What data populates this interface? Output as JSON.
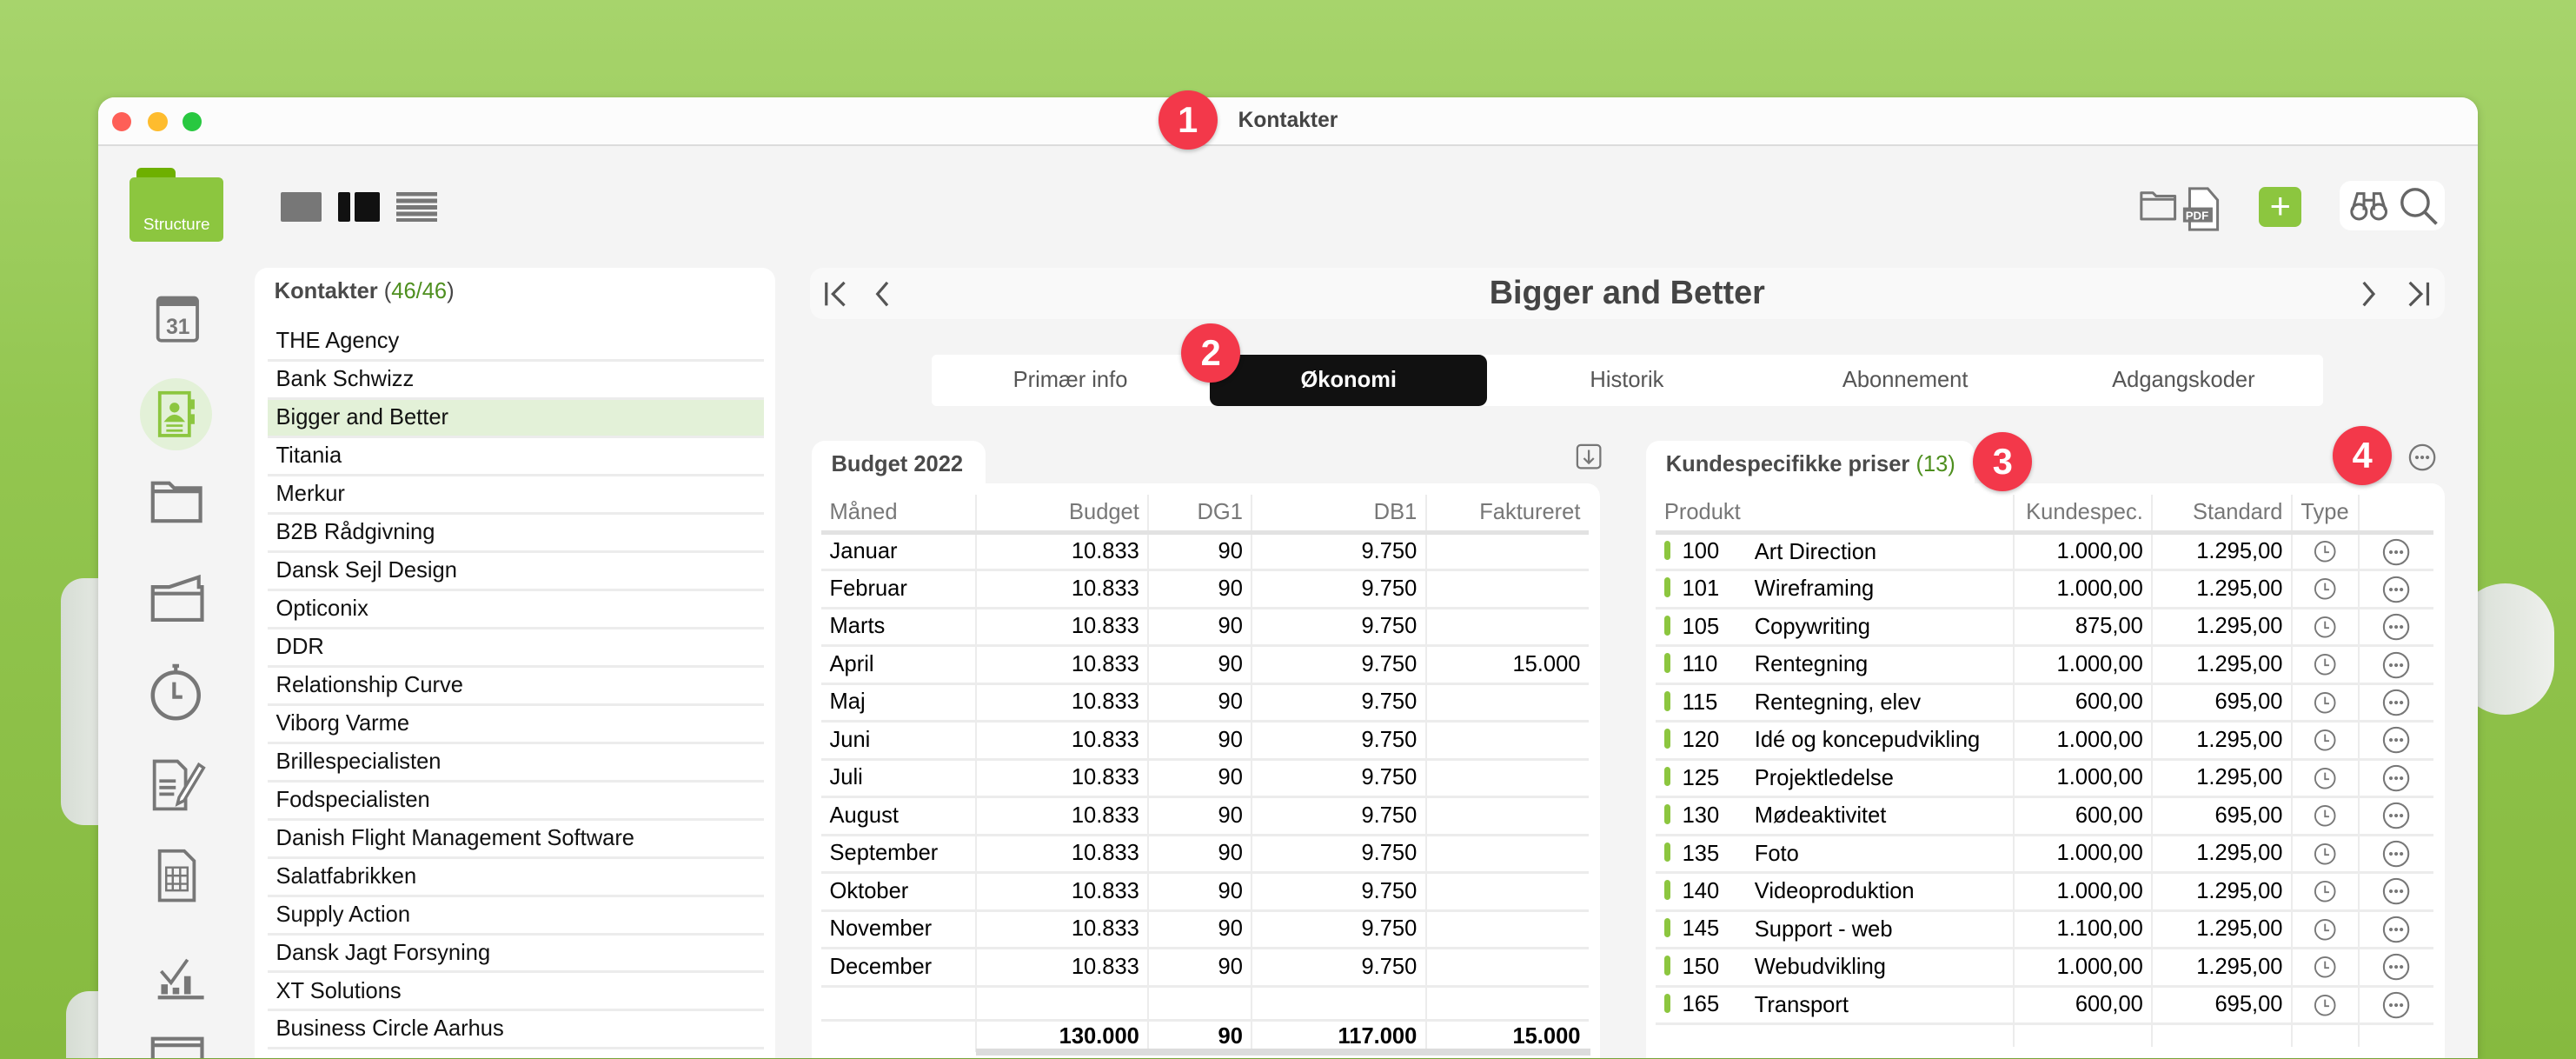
{
  "window": {
    "title": "Kontakter"
  },
  "annotations": [
    "1",
    "2",
    "3",
    "4"
  ],
  "toolbar": {
    "logo_label": "Structure",
    "view_modes": [
      "single-view-icon",
      "split-view-icon",
      "list-view-icon"
    ],
    "right_icons": [
      "folder-icon",
      "pdf-icon",
      "add-icon",
      "binoculars-icon",
      "search-icon"
    ],
    "pdf_label": "PDF"
  },
  "sidebar": {
    "icons": [
      "calendar-icon",
      "contact-card-icon",
      "folder-icon",
      "open-folder-icon",
      "stopwatch-icon",
      "edit-document-icon",
      "spreadsheet-icon",
      "chart-icon",
      "invoice-icon"
    ],
    "active": 1,
    "calendar_day": "31"
  },
  "contacts": {
    "title": "Kontakter",
    "count_open": "(",
    "count": "46/46",
    "count_close": ")",
    "selected": 2,
    "items": [
      "THE Agency",
      "Bank Schwizz",
      "Bigger and Better",
      "Titania",
      "Merkur",
      "B2B Rådgivning",
      "Dansk Sejl Design",
      "Opticonix",
      "DDR",
      "Relationship Curve",
      "Viborg Varme",
      "Brillespecialisten",
      "Fodspecialisten",
      "Danish Flight Management Software",
      "Salatfabrikken",
      "Supply Action",
      "Dansk Jagt Forsyning",
      "XT Solutions",
      "Business Circle Aarhus"
    ]
  },
  "record": {
    "title": "Bigger and Better"
  },
  "tabs": {
    "items": [
      "Primær info",
      "Økonomi",
      "Historik",
      "Abonnement",
      "Adgangskoder"
    ],
    "active": 1
  },
  "budget": {
    "title": "Budget 2022",
    "columns": [
      "Måned",
      "Budget",
      "DG1",
      "DB1",
      "Faktureret"
    ],
    "rows": [
      [
        "Januar",
        "10.833",
        "90",
        "9.750",
        ""
      ],
      [
        "Februar",
        "10.833",
        "90",
        "9.750",
        ""
      ],
      [
        "Marts",
        "10.833",
        "90",
        "9.750",
        ""
      ],
      [
        "April",
        "10.833",
        "90",
        "9.750",
        "15.000"
      ],
      [
        "Maj",
        "10.833",
        "90",
        "9.750",
        ""
      ],
      [
        "Juni",
        "10.833",
        "90",
        "9.750",
        ""
      ],
      [
        "Juli",
        "10.833",
        "90",
        "9.750",
        ""
      ],
      [
        "August",
        "10.833",
        "90",
        "9.750",
        ""
      ],
      [
        "September",
        "10.833",
        "90",
        "9.750",
        ""
      ],
      [
        "Oktober",
        "10.833",
        "90",
        "9.750",
        ""
      ],
      [
        "November",
        "10.833",
        "90",
        "9.750",
        ""
      ],
      [
        "December",
        "10.833",
        "90",
        "9.750",
        ""
      ]
    ],
    "totals": [
      "",
      "130.000",
      "90",
      "117.000",
      "15.000"
    ]
  },
  "prices": {
    "title": "Kundespecifikke priser",
    "count": "(13)",
    "columns": [
      "Produkt",
      "Kundespec.",
      "Standard",
      "Type"
    ],
    "accent": "#8cc63f",
    "rows": [
      [
        "100",
        "Art Direction",
        "1.000,00",
        "1.295,00"
      ],
      [
        "101",
        "Wireframing",
        "1.000,00",
        "1.295,00"
      ],
      [
        "105",
        "Copywriting",
        "875,00",
        "1.295,00"
      ],
      [
        "110",
        "Rentegning",
        "1.000,00",
        "1.295,00"
      ],
      [
        "115",
        "Rentegning, elev",
        "600,00",
        "695,00"
      ],
      [
        "120",
        "Idé og koncepudvikling",
        "1.000,00",
        "1.295,00"
      ],
      [
        "125",
        "Projektledelse",
        "1.000,00",
        "1.295,00"
      ],
      [
        "130",
        "Mødeaktivitet",
        "600,00",
        "695,00"
      ],
      [
        "135",
        "Foto",
        "1.000,00",
        "1.295,00"
      ],
      [
        "140",
        "Videoproduktion",
        "1.000,00",
        "1.295,00"
      ],
      [
        "145",
        "Support - web",
        "1.100,00",
        "1.295,00"
      ],
      [
        "150",
        "Webudvikling",
        "1.000,00",
        "1.295,00"
      ],
      [
        "165",
        "Transport",
        "600,00",
        "695,00"
      ]
    ]
  },
  "colors": {
    "brand_green": "#8cc63f",
    "badge_red": "#f3384a",
    "selected_row": "#e3f1d8"
  }
}
